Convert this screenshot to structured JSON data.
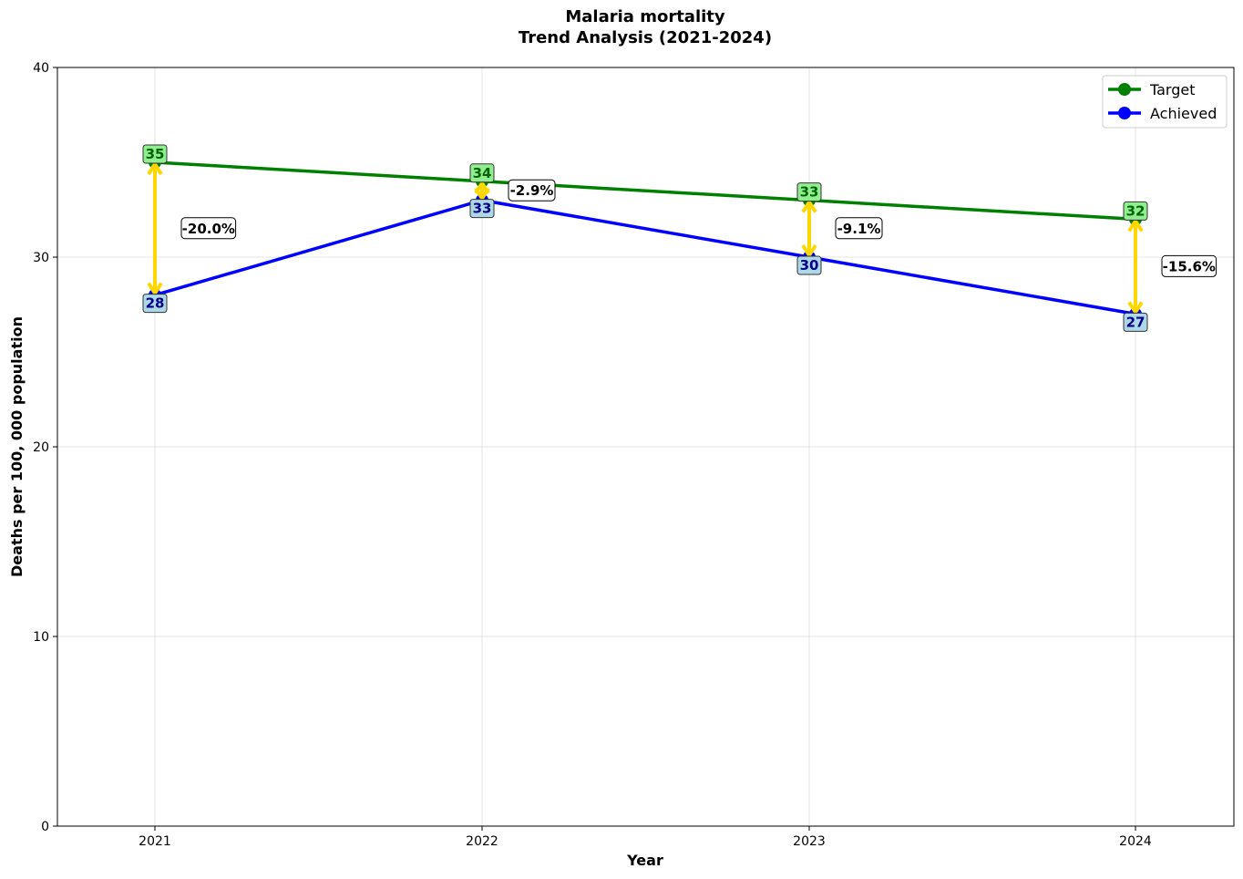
{
  "chart_data": {
    "type": "line",
    "title_line1": "Malaria mortality",
    "title_line2": "Trend Analysis (2021-2024)",
    "xlabel": "Year",
    "ylabel": "Deaths per 100, 000 population",
    "categories": [
      "2021",
      "2022",
      "2023",
      "2024"
    ],
    "ylim": [
      0,
      40
    ],
    "yticks": [
      0,
      10,
      20,
      30,
      40
    ],
    "grid": true,
    "legend_position": "top-right",
    "series": [
      {
        "name": "Target",
        "color": "#008000",
        "label_bg": "#90ee90",
        "label_color": "#006400",
        "values": [
          35,
          34,
          33,
          32
        ],
        "labels": [
          "35",
          "34",
          "33",
          "32"
        ]
      },
      {
        "name": "Achieved",
        "color": "#0000ff",
        "label_bg": "#add8e6",
        "label_color": "#00008b",
        "values": [
          28,
          33,
          30,
          27
        ],
        "labels": [
          "28",
          "33",
          "30",
          "27"
        ]
      }
    ],
    "gaps": [
      "-20.0%",
      "-2.9%",
      "-9.1%",
      "-15.6%"
    ],
    "gap_arrow_color": "#ffd700"
  }
}
